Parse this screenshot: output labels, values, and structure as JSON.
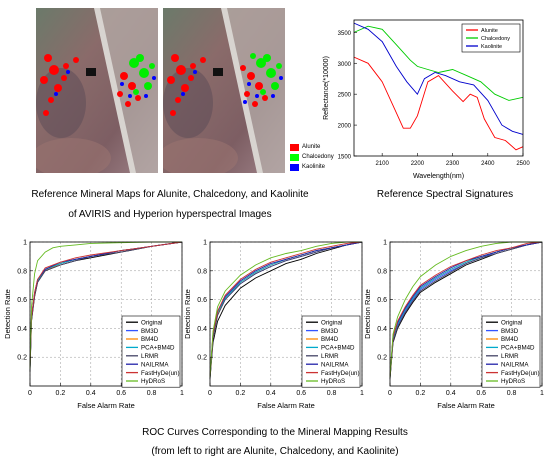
{
  "maps": {
    "legend": [
      {
        "label": "Alunite",
        "color": "#ff0000"
      },
      {
        "label": "Chalcedony",
        "color": "#00ff00"
      },
      {
        "label": "Kaolinite",
        "color": "#0000ff"
      }
    ]
  },
  "captions": {
    "maps_line1": "Reference Mineral Maps for Alunite, Chalcedony, and Kaolinite",
    "maps_line2": "of AVIRIS and Hyperion hyperspectral Images",
    "spectral": "Reference Spectral Signatures",
    "roc_line1": "ROC Curves Corresponding to the Mineral Mapping Results",
    "roc_line2": "(from left to right are Alunite, Chalcedony, and Kaolinite)"
  },
  "chart_data": [
    {
      "type": "line",
      "title": "",
      "xlabel": "Wavelength(nm)",
      "ylabel": "Reflectance(*10000)",
      "xlim": [
        2020,
        2500
      ],
      "ylim": [
        1500,
        3700
      ],
      "xticks": [
        2100,
        2200,
        2300,
        2400,
        2500
      ],
      "yticks": [
        1500,
        2000,
        2500,
        3000,
        3500
      ],
      "legend_position": "top-right",
      "grid": false,
      "series": [
        {
          "name": "Alunite",
          "color": "#ff0000",
          "x": [
            2020,
            2060,
            2100,
            2140,
            2160,
            2180,
            2200,
            2230,
            2260,
            2300,
            2330,
            2350,
            2370,
            2390,
            2420,
            2450,
            2480,
            2500
          ],
          "y": [
            3100,
            3000,
            2700,
            2200,
            1950,
            1950,
            2150,
            2700,
            2800,
            2550,
            2380,
            2500,
            2450,
            2100,
            1800,
            1750,
            1600,
            1650
          ]
        },
        {
          "name": "Chalcedony",
          "color": "#00cc00",
          "x": [
            2020,
            2060,
            2100,
            2140,
            2180,
            2200,
            2230,
            2260,
            2300,
            2340,
            2380,
            2420,
            2460,
            2500
          ],
          "y": [
            3500,
            3600,
            3550,
            3300,
            3050,
            2950,
            2900,
            2850,
            2900,
            2800,
            2700,
            2500,
            2400,
            2450
          ]
        },
        {
          "name": "Kaolinite",
          "color": "#0000cc",
          "x": [
            2020,
            2060,
            2100,
            2140,
            2170,
            2200,
            2220,
            2250,
            2280,
            2320,
            2360,
            2400,
            2440,
            2470,
            2500
          ],
          "y": [
            3650,
            3550,
            3350,
            2950,
            2700,
            2500,
            2750,
            2850,
            2800,
            2700,
            2650,
            2400,
            2000,
            1900,
            1850
          ]
        }
      ]
    },
    {
      "type": "line",
      "title": "",
      "xlabel": "False Alarm Rate",
      "ylabel": "Detection Rate",
      "xlim": [
        0,
        1
      ],
      "ylim": [
        0,
        1
      ],
      "xticks": [
        0,
        0.2,
        0.4,
        0.6,
        0.8,
        1
      ],
      "yticks": [
        0.2,
        0.4,
        0.6,
        0.8,
        1
      ],
      "legend_position": "bottom-right",
      "grid": true,
      "series": [
        {
          "name": "Original",
          "color": "#000000",
          "x": [
            0,
            0.01,
            0.03,
            0.05,
            0.1,
            0.2,
            0.3,
            0.4,
            0.6,
            0.8,
            1
          ],
          "y": [
            0.1,
            0.45,
            0.62,
            0.72,
            0.8,
            0.84,
            0.87,
            0.89,
            0.93,
            0.97,
            1
          ]
        },
        {
          "name": "BM3D",
          "color": "#3355ff",
          "x": [
            0,
            0.01,
            0.03,
            0.05,
            0.1,
            0.2,
            0.3,
            0.4,
            0.6,
            0.8,
            1
          ],
          "y": [
            0.12,
            0.48,
            0.64,
            0.73,
            0.81,
            0.85,
            0.88,
            0.9,
            0.94,
            0.97,
            1
          ]
        },
        {
          "name": "BM4D",
          "color": "#ff8800",
          "x": [
            0,
            0.01,
            0.03,
            0.05,
            0.1,
            0.2,
            0.3,
            0.4,
            0.6,
            0.8,
            1
          ],
          "y": [
            0.12,
            0.47,
            0.63,
            0.73,
            0.8,
            0.85,
            0.88,
            0.9,
            0.94,
            0.97,
            1
          ]
        },
        {
          "name": "PCA+BM4D",
          "color": "#00aacc",
          "x": [
            0,
            0.01,
            0.03,
            0.05,
            0.1,
            0.2,
            0.3,
            0.4,
            0.6,
            0.8,
            1
          ],
          "y": [
            0.12,
            0.47,
            0.64,
            0.73,
            0.81,
            0.85,
            0.88,
            0.9,
            0.94,
            0.97,
            1
          ]
        },
        {
          "name": "LRMR",
          "color": "#444466",
          "x": [
            0,
            0.01,
            0.03,
            0.05,
            0.1,
            0.2,
            0.3,
            0.4,
            0.6,
            0.8,
            1
          ],
          "y": [
            0.11,
            0.46,
            0.63,
            0.72,
            0.8,
            0.84,
            0.87,
            0.9,
            0.93,
            0.97,
            1
          ]
        },
        {
          "name": "NAILRMA",
          "color": "#2222aa",
          "x": [
            0,
            0.01,
            0.03,
            0.05,
            0.1,
            0.2,
            0.3,
            0.4,
            0.6,
            0.8,
            1
          ],
          "y": [
            0.12,
            0.48,
            0.65,
            0.74,
            0.81,
            0.86,
            0.88,
            0.9,
            0.94,
            0.97,
            1
          ]
        },
        {
          "name": "FastHyDe(un)",
          "color": "#cc3333",
          "x": [
            0,
            0.01,
            0.03,
            0.05,
            0.1,
            0.2,
            0.3,
            0.4,
            0.6,
            0.8,
            1
          ],
          "y": [
            0.12,
            0.48,
            0.65,
            0.74,
            0.82,
            0.86,
            0.89,
            0.91,
            0.94,
            0.97,
            1
          ]
        },
        {
          "name": "HyDRoS",
          "color": "#66bb22",
          "x": [
            0,
            0.01,
            0.03,
            0.05,
            0.1,
            0.15,
            0.2,
            0.3,
            0.4,
            0.6,
            0.8,
            1
          ],
          "y": [
            0.12,
            0.55,
            0.78,
            0.87,
            0.93,
            0.96,
            0.97,
            0.98,
            0.99,
            0.995,
            1,
            1
          ]
        }
      ]
    },
    {
      "type": "line",
      "title": "",
      "xlabel": "False Alarm Rate",
      "ylabel": "Detection Rate",
      "xlim": [
        0,
        1
      ],
      "ylim": [
        0,
        1
      ],
      "xticks": [
        0,
        0.2,
        0.4,
        0.6,
        0.8,
        1
      ],
      "yticks": [
        0.2,
        0.4,
        0.6,
        0.8,
        1
      ],
      "legend_position": "bottom-right",
      "grid": true,
      "series": [
        {
          "name": "Original",
          "color": "#000000",
          "x": [
            0,
            0.02,
            0.05,
            0.1,
            0.2,
            0.3,
            0.4,
            0.5,
            0.6,
            0.7,
            0.8,
            0.9,
            1
          ],
          "y": [
            0.05,
            0.3,
            0.45,
            0.56,
            0.68,
            0.75,
            0.8,
            0.85,
            0.88,
            0.92,
            0.95,
            0.98,
            1
          ]
        },
        {
          "name": "BM3D",
          "color": "#3355ff",
          "x": [
            0,
            0.02,
            0.05,
            0.1,
            0.2,
            0.3,
            0.4,
            0.5,
            0.6,
            0.7,
            0.8,
            0.9,
            1
          ],
          "y": [
            0.06,
            0.34,
            0.5,
            0.6,
            0.71,
            0.78,
            0.83,
            0.87,
            0.9,
            0.93,
            0.96,
            0.98,
            1
          ]
        },
        {
          "name": "BM4D",
          "color": "#ff8800",
          "x": [
            0,
            0.02,
            0.05,
            0.1,
            0.2,
            0.3,
            0.4,
            0.5,
            0.6,
            0.7,
            0.8,
            0.9,
            1
          ],
          "y": [
            0.06,
            0.35,
            0.5,
            0.61,
            0.72,
            0.79,
            0.84,
            0.88,
            0.91,
            0.94,
            0.96,
            0.98,
            1
          ]
        },
        {
          "name": "PCA+BM4D",
          "color": "#00aacc",
          "x": [
            0,
            0.02,
            0.05,
            0.1,
            0.2,
            0.3,
            0.4,
            0.5,
            0.6,
            0.7,
            0.8,
            0.9,
            1
          ],
          "y": [
            0.06,
            0.35,
            0.51,
            0.61,
            0.72,
            0.79,
            0.84,
            0.88,
            0.91,
            0.94,
            0.96,
            0.98,
            1
          ]
        },
        {
          "name": "LRMR",
          "color": "#444466",
          "x": [
            0,
            0.02,
            0.05,
            0.1,
            0.2,
            0.3,
            0.4,
            0.5,
            0.6,
            0.7,
            0.8,
            0.9,
            1
          ],
          "y": [
            0.05,
            0.33,
            0.49,
            0.6,
            0.71,
            0.78,
            0.83,
            0.87,
            0.9,
            0.93,
            0.96,
            0.98,
            1
          ]
        },
        {
          "name": "NAILRMA",
          "color": "#2222aa",
          "x": [
            0,
            0.02,
            0.05,
            0.1,
            0.2,
            0.3,
            0.4,
            0.5,
            0.6,
            0.7,
            0.8,
            0.9,
            1
          ],
          "y": [
            0.06,
            0.36,
            0.52,
            0.62,
            0.73,
            0.8,
            0.85,
            0.88,
            0.91,
            0.94,
            0.96,
            0.98,
            1
          ]
        },
        {
          "name": "FastHyDe(un)",
          "color": "#cc3333",
          "x": [
            0,
            0.02,
            0.05,
            0.1,
            0.2,
            0.3,
            0.4,
            0.5,
            0.6,
            0.7,
            0.8,
            0.9,
            1
          ],
          "y": [
            0.06,
            0.36,
            0.52,
            0.63,
            0.74,
            0.81,
            0.86,
            0.89,
            0.92,
            0.95,
            0.97,
            0.99,
            1
          ]
        },
        {
          "name": "HyDRoS",
          "color": "#66bb22",
          "x": [
            0,
            0.02,
            0.05,
            0.1,
            0.2,
            0.3,
            0.4,
            0.5,
            0.6,
            0.7,
            0.8,
            0.9,
            1
          ],
          "y": [
            0.06,
            0.38,
            0.55,
            0.66,
            0.77,
            0.84,
            0.89,
            0.92,
            0.94,
            0.97,
            0.99,
            1,
            1
          ]
        }
      ]
    },
    {
      "type": "line",
      "title": "",
      "xlabel": "False Alarm Rate",
      "ylabel": "Detection Rate",
      "xlim": [
        0,
        1
      ],
      "ylim": [
        0,
        1
      ],
      "xticks": [
        0,
        0.2,
        0.4,
        0.6,
        0.8,
        1
      ],
      "yticks": [
        0.2,
        0.4,
        0.6,
        0.8,
        1
      ],
      "legend_position": "bottom-right",
      "grid": true,
      "series": [
        {
          "name": "Original",
          "color": "#000000",
          "x": [
            0,
            0.02,
            0.05,
            0.1,
            0.15,
            0.2,
            0.3,
            0.4,
            0.5,
            0.6,
            0.7,
            0.8,
            0.9,
            1
          ],
          "y": [
            0.05,
            0.3,
            0.4,
            0.5,
            0.58,
            0.65,
            0.72,
            0.78,
            0.84,
            0.88,
            0.92,
            0.95,
            0.98,
            1
          ]
        },
        {
          "name": "BM3D",
          "color": "#3355ff",
          "x": [
            0,
            0.02,
            0.05,
            0.1,
            0.15,
            0.2,
            0.3,
            0.4,
            0.5,
            0.6,
            0.7,
            0.8,
            0.9,
            1
          ],
          "y": [
            0.06,
            0.32,
            0.42,
            0.52,
            0.6,
            0.67,
            0.74,
            0.8,
            0.85,
            0.89,
            0.93,
            0.96,
            0.98,
            1
          ]
        },
        {
          "name": "BM4D",
          "color": "#ff8800",
          "x": [
            0,
            0.02,
            0.05,
            0.1,
            0.15,
            0.2,
            0.3,
            0.4,
            0.5,
            0.6,
            0.7,
            0.8,
            0.9,
            1
          ],
          "y": [
            0.06,
            0.33,
            0.43,
            0.53,
            0.61,
            0.68,
            0.75,
            0.81,
            0.86,
            0.9,
            0.93,
            0.96,
            0.98,
            1
          ]
        },
        {
          "name": "PCA+BM4D",
          "color": "#00aacc",
          "x": [
            0,
            0.02,
            0.05,
            0.1,
            0.15,
            0.2,
            0.3,
            0.4,
            0.5,
            0.6,
            0.7,
            0.8,
            0.9,
            1
          ],
          "y": [
            0.06,
            0.33,
            0.43,
            0.53,
            0.61,
            0.68,
            0.75,
            0.81,
            0.86,
            0.9,
            0.93,
            0.96,
            0.98,
            1
          ]
        },
        {
          "name": "LRMR",
          "color": "#444466",
          "x": [
            0,
            0.02,
            0.05,
            0.1,
            0.15,
            0.2,
            0.3,
            0.4,
            0.5,
            0.6,
            0.7,
            0.8,
            0.9,
            1
          ],
          "y": [
            0.05,
            0.31,
            0.41,
            0.51,
            0.59,
            0.66,
            0.73,
            0.79,
            0.85,
            0.89,
            0.92,
            0.95,
            0.98,
            1
          ]
        },
        {
          "name": "NAILRMA",
          "color": "#2222aa",
          "x": [
            0,
            0.02,
            0.05,
            0.1,
            0.15,
            0.2,
            0.3,
            0.4,
            0.5,
            0.6,
            0.7,
            0.8,
            0.9,
            1
          ],
          "y": [
            0.06,
            0.34,
            0.44,
            0.54,
            0.62,
            0.69,
            0.76,
            0.82,
            0.87,
            0.9,
            0.93,
            0.96,
            0.98,
            1
          ]
        },
        {
          "name": "FastHyDe(un)",
          "color": "#cc3333",
          "x": [
            0,
            0.02,
            0.05,
            0.1,
            0.15,
            0.2,
            0.3,
            0.4,
            0.5,
            0.6,
            0.7,
            0.8,
            0.9,
            1
          ],
          "y": [
            0.06,
            0.34,
            0.45,
            0.55,
            0.63,
            0.7,
            0.77,
            0.83,
            0.87,
            0.91,
            0.94,
            0.96,
            0.99,
            1
          ]
        },
        {
          "name": "HyDRoS",
          "color": "#66bb22",
          "x": [
            0,
            0.02,
            0.05,
            0.1,
            0.15,
            0.2,
            0.3,
            0.4,
            0.5,
            0.6,
            0.7,
            0.8,
            0.9,
            1
          ],
          "y": [
            0.06,
            0.36,
            0.48,
            0.6,
            0.69,
            0.76,
            0.84,
            0.9,
            0.94,
            0.97,
            0.99,
            1,
            1,
            1
          ]
        }
      ]
    }
  ]
}
